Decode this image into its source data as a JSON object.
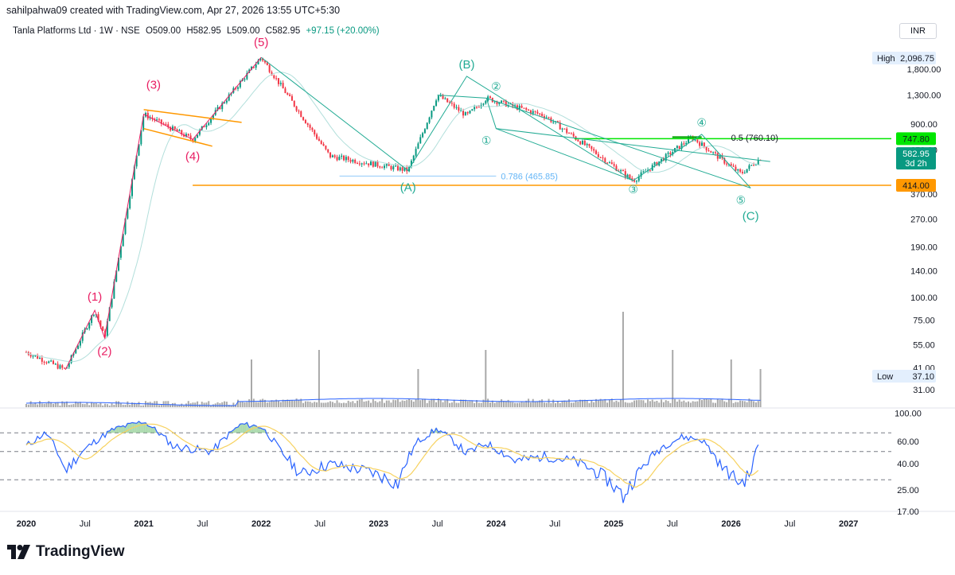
{
  "header": {
    "created_by": "sahilpahwa09 created with TradingView.com, Apr 27, 2026 13:55 UTC+5:30"
  },
  "symbol": {
    "name": "Tanla Platforms Ltd · 1W · NSE",
    "open": "O509.00",
    "high": "H582.95",
    "low": "L509.00",
    "close": "C582.95",
    "change": "+97.15 (+20.00%)"
  },
  "currency": "INR",
  "brand": {
    "name": "TradingView"
  },
  "colors": {
    "up": "#089981",
    "down": "#f23645",
    "rsi": "#2962ff",
    "rsi_ma": "#f7d25f",
    "orange": "#ff9800",
    "green_line": "#00e600",
    "fib_blue": "#90caf9",
    "wave_red": "#e91e63",
    "wave_teal": "#22ab94"
  },
  "chart_data": {
    "type": "candlestick",
    "title": "Tanla Platforms Ltd · 1W · NSE",
    "y_scale": "log",
    "ylim": [
      31,
      2500
    ],
    "y_ticks": [
      "1,800.00",
      "1,300.00",
      "900.00",
      "650.00",
      "370.00",
      "270.00",
      "190.00",
      "140.00",
      "100.00",
      "75.00",
      "55.00",
      "41.00",
      "31.00"
    ],
    "x_ticks": [
      "2020",
      "Jul",
      "2021",
      "Jul",
      "2022",
      "Jul",
      "2023",
      "Jul",
      "2024",
      "Jul",
      "2025",
      "Jul",
      "2026",
      "Jul",
      "2027"
    ],
    "markers": {
      "high_label": "High",
      "high_value": "2,096.75",
      "low_label": "Low",
      "low_value": "37.10"
    },
    "price_labels": {
      "green_line": "747.80",
      "last": "582.95",
      "last_time": "3d 2h",
      "orange_line": "414.00"
    },
    "price_lines": {
      "green": 747.8,
      "orange": 414.0
    },
    "fib_levels": [
      {
        "label": "0.786 (465.85)",
        "value": 465.85
      },
      {
        "label": "0.5 (760.10)",
        "value": 760.1
      }
    ],
    "waves_red": [
      "(1)",
      "(2)",
      "(3)",
      "(4)",
      "(5)"
    ],
    "waves_teal_major": [
      "(A)",
      "(B)",
      "(C)"
    ],
    "waves_teal_minor": [
      "①",
      "②",
      "③",
      "④",
      "⑤"
    ],
    "key_points": [
      {
        "date": "2020-01",
        "price": 50
      },
      {
        "date": "2020-05",
        "price": 40
      },
      {
        "date": "2020-08",
        "price": 85
      },
      {
        "date": "2020-09",
        "price": 60
      },
      {
        "date": "2021-01",
        "price": 1020
      },
      {
        "date": "2021-06",
        "price": 740
      },
      {
        "date": "2022-01",
        "price": 2096.75
      },
      {
        "date": "2022-08",
        "price": 600
      },
      {
        "date": "2023-04",
        "price": 500
      },
      {
        "date": "2023-07",
        "price": 1300
      },
      {
        "date": "2023-10",
        "price": 1000
      },
      {
        "date": "2023-12",
        "price": 1250
      },
      {
        "date": "2024-06",
        "price": 1000
      },
      {
        "date": "2025-03",
        "price": 440
      },
      {
        "date": "2025-09",
        "price": 760
      },
      {
        "date": "2026-02",
        "price": 480
      },
      {
        "date": "2026-04",
        "price": 582.95
      }
    ],
    "volume_spikes": [
      {
        "date": "2021-12",
        "relative": 0.5
      },
      {
        "date": "2022-07",
        "relative": 0.6
      },
      {
        "date": "2023-05",
        "relative": 0.4
      },
      {
        "date": "2023-12",
        "relative": 0.6
      },
      {
        "date": "2025-02",
        "relative": 1.0
      },
      {
        "date": "2025-07",
        "relative": 0.6
      },
      {
        "date": "2026-01",
        "relative": 0.5
      },
      {
        "date": "2026-04",
        "relative": 0.4
      }
    ],
    "rsi": {
      "ylim": [
        17,
        100
      ],
      "ticks": [
        "100.00",
        "60.00",
        "40.00",
        "25.00",
        "17.00"
      ],
      "bands": [
        70,
        50,
        30
      ],
      "points": [
        {
          "date": "2020-01",
          "value": 55
        },
        {
          "date": "2020-03",
          "value": 70
        },
        {
          "date": "2020-05",
          "value": 35
        },
        {
          "date": "2020-08",
          "value": 60
        },
        {
          "date": "2020-10",
          "value": 75
        },
        {
          "date": "2021-01",
          "value": 86
        },
        {
          "date": "2021-04",
          "value": 55
        },
        {
          "date": "2021-08",
          "value": 50
        },
        {
          "date": "2021-11",
          "value": 82
        },
        {
          "date": "2022-01",
          "value": 78
        },
        {
          "date": "2022-03",
          "value": 50
        },
        {
          "date": "2022-05",
          "value": 33
        },
        {
          "date": "2022-08",
          "value": 40
        },
        {
          "date": "2022-12",
          "value": 35
        },
        {
          "date": "2023-03",
          "value": 28
        },
        {
          "date": "2023-05",
          "value": 60
        },
        {
          "date": "2023-07",
          "value": 75
        },
        {
          "date": "2023-10",
          "value": 48
        },
        {
          "date": "2023-12",
          "value": 58
        },
        {
          "date": "2024-03",
          "value": 42
        },
        {
          "date": "2024-06",
          "value": 46
        },
        {
          "date": "2024-09",
          "value": 42
        },
        {
          "date": "2024-12",
          "value": 32
        },
        {
          "date": "2025-02",
          "value": 22
        },
        {
          "date": "2025-04",
          "value": 38
        },
        {
          "date": "2025-06",
          "value": 55
        },
        {
          "date": "2025-08",
          "value": 65
        },
        {
          "date": "2025-10",
          "value": 62
        },
        {
          "date": "2025-12",
          "value": 38
        },
        {
          "date": "2026-02",
          "value": 28
        },
        {
          "date": "2026-03",
          "value": 34
        },
        {
          "date": "2026-04",
          "value": 63
        }
      ]
    }
  }
}
